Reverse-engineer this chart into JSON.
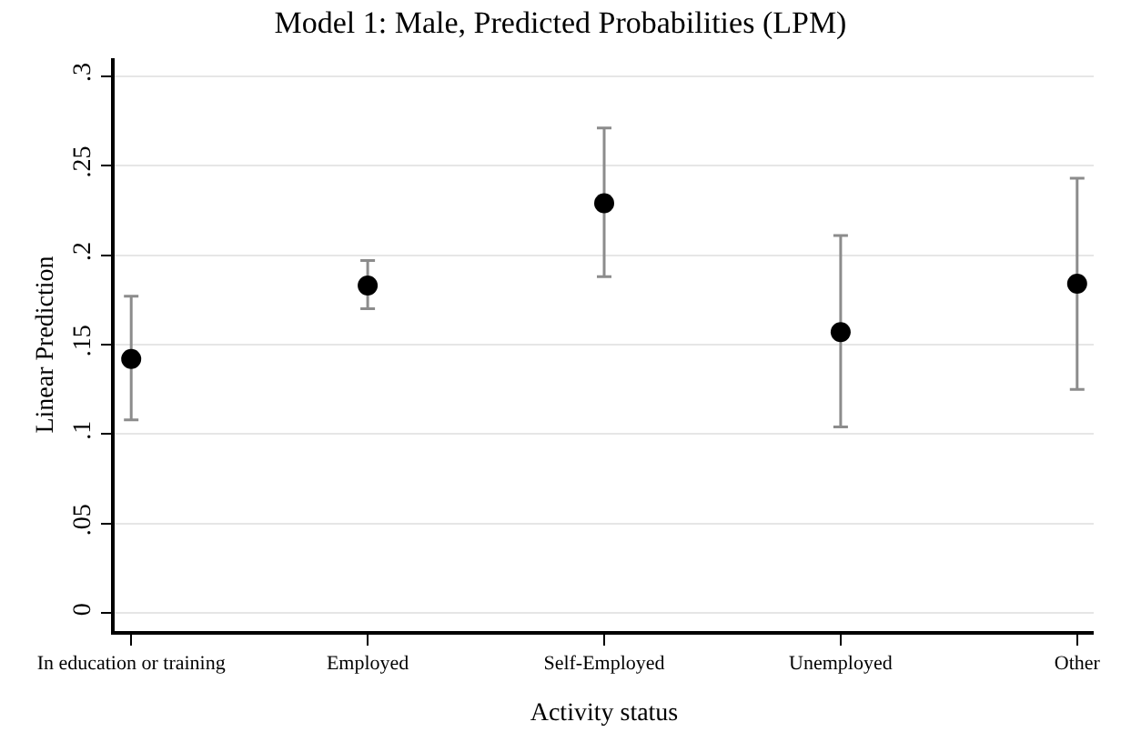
{
  "chart_data": {
    "type": "scatter",
    "title": "Model 1: Male, Predicted Probabilities (LPM)",
    "xlabel": "Activity status",
    "ylabel": "Linear Prediction",
    "categories": [
      "In education or training",
      "Employed",
      "Self-Employed",
      "Unemployed",
      "Other"
    ],
    "series": [
      {
        "color": "#000000",
        "values": [
          0.142,
          0.183,
          0.229,
          0.157,
          0.184
        ],
        "errors": [
          [
            0.108,
            0.177
          ],
          [
            0.17,
            0.197
          ],
          [
            0.188,
            0.271
          ],
          [
            0.104,
            0.211
          ],
          [
            0.125,
            0.243
          ]
        ]
      }
    ],
    "ylim": [
      -0.01,
      0.31
    ],
    "yticks": [
      {
        "value": 0,
        "label": "0"
      },
      {
        "value": 0.05,
        "label": ".05"
      },
      {
        "value": 0.1,
        "label": ".1"
      },
      {
        "value": 0.15,
        "label": ".15"
      },
      {
        "value": 0.2,
        "label": ".2"
      },
      {
        "value": 0.25,
        "label": ".25"
      },
      {
        "value": 0.3,
        "label": ".3"
      }
    ],
    "grid": "y",
    "marker": "circle"
  }
}
